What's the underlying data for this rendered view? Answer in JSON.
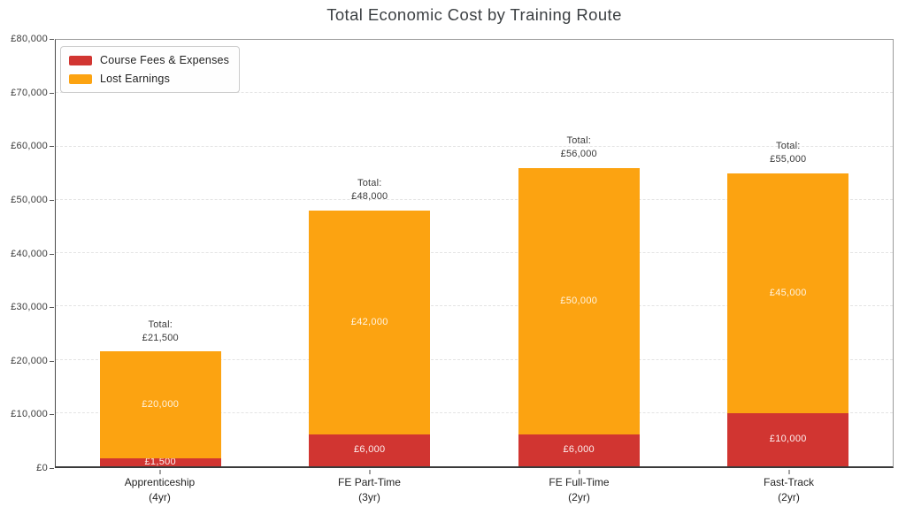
{
  "title": "Total Economic Cost by Training Route",
  "colors": {
    "course_fees": "#d13531",
    "lost_earnings": "#fca311",
    "grid": "#e4e4e4",
    "axis_text": "#3a3a3a",
    "segment_label_on_red": "rgba(255,255,255,0.93)",
    "segment_label_on_orange": "rgba(255,255,255,0.88)"
  },
  "legend": {
    "items": [
      {
        "label": "Course Fees & Expenses",
        "color": "#d13531"
      },
      {
        "label": "Lost Earnings",
        "color": "#fca311"
      }
    ]
  },
  "chart_data": {
    "type": "bar",
    "stacked": true,
    "title": "Total Economic Cost by Training Route",
    "categories": [
      "Apprenticeship",
      "FE Part-Time",
      "FE Full-Time",
      "Fast-Track"
    ],
    "category_sublabels": [
      "(4yr)",
      "(3yr)",
      "(2yr)",
      "(2yr)"
    ],
    "series": [
      {
        "name": "Course Fees & Expenses",
        "color": "#d13531",
        "values": [
          1500,
          6000,
          6000,
          10000
        ],
        "labels": [
          "£1,500",
          "£6,000",
          "£6,000",
          "£10,000"
        ]
      },
      {
        "name": "Lost Earnings",
        "color": "#fca311",
        "values": [
          20000,
          42000,
          50000,
          45000
        ],
        "labels": [
          "£20,000",
          "£42,000",
          "£50,000",
          "£45,000"
        ]
      }
    ],
    "totals": [
      21500,
      48000,
      56000,
      55000
    ],
    "total_prefix": "Total:",
    "total_labels": [
      "£21,500",
      "£48,000",
      "£56,000",
      "£55,000"
    ],
    "ylim": [
      0,
      80000
    ],
    "y_ticks": [
      {
        "value": 0,
        "label": "£0"
      },
      {
        "value": 10000,
        "label": "£10,000"
      },
      {
        "value": 20000,
        "label": "£20,000"
      },
      {
        "value": 30000,
        "label": "£30,000"
      },
      {
        "value": 40000,
        "label": "£40,000"
      },
      {
        "value": 50000,
        "label": "£50,000"
      },
      {
        "value": 60000,
        "label": "£60,000"
      },
      {
        "value": 70000,
        "label": "£70,000"
      },
      {
        "value": 80000,
        "label": "£80,000"
      }
    ],
    "grid": "horizontal-dashed",
    "legend_position": "upper-left",
    "bar_width_fraction": 0.145
  }
}
